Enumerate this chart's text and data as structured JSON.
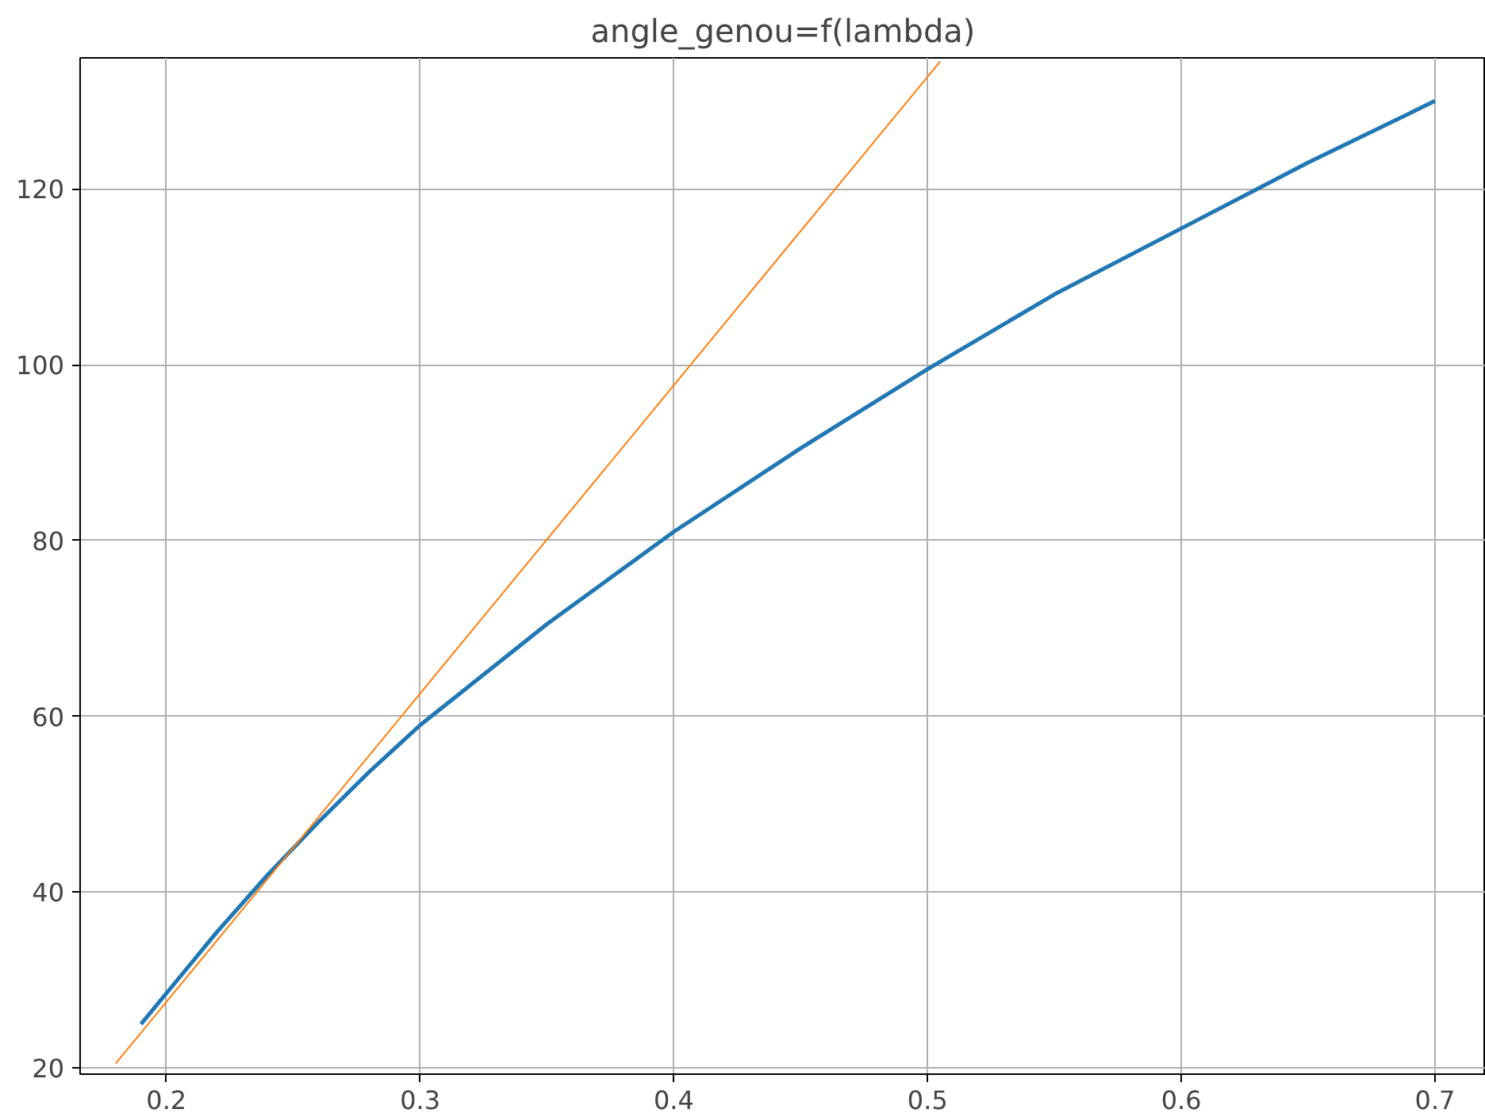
{
  "chart_data": {
    "type": "line",
    "title": "angle_genou=f(lambda)",
    "xlim": [
      0.166,
      0.72
    ],
    "ylim": [
      19.3,
      134.9
    ],
    "xticks": [
      0.2,
      0.3,
      0.4,
      0.5,
      0.6,
      0.7
    ],
    "yticks": [
      20,
      40,
      60,
      80,
      100,
      120
    ],
    "grid": true,
    "series": [
      {
        "color": "#1f77b4",
        "x": [
          0.19,
          0.2,
          0.22,
          0.24,
          0.26,
          0.28,
          0.3,
          0.35,
          0.4,
          0.45,
          0.5,
          0.55,
          0.6,
          0.65,
          0.7
        ],
        "values": [
          25,
          28.5,
          35.5,
          42,
          48,
          53.7,
          59,
          70.5,
          81,
          90.5,
          99.5,
          108,
          115.5,
          123,
          130
        ]
      },
      {
        "color": "#ff7f0e",
        "x": [
          0.18,
          0.505
        ],
        "values": [
          20.5,
          134.5
        ]
      }
    ]
  }
}
